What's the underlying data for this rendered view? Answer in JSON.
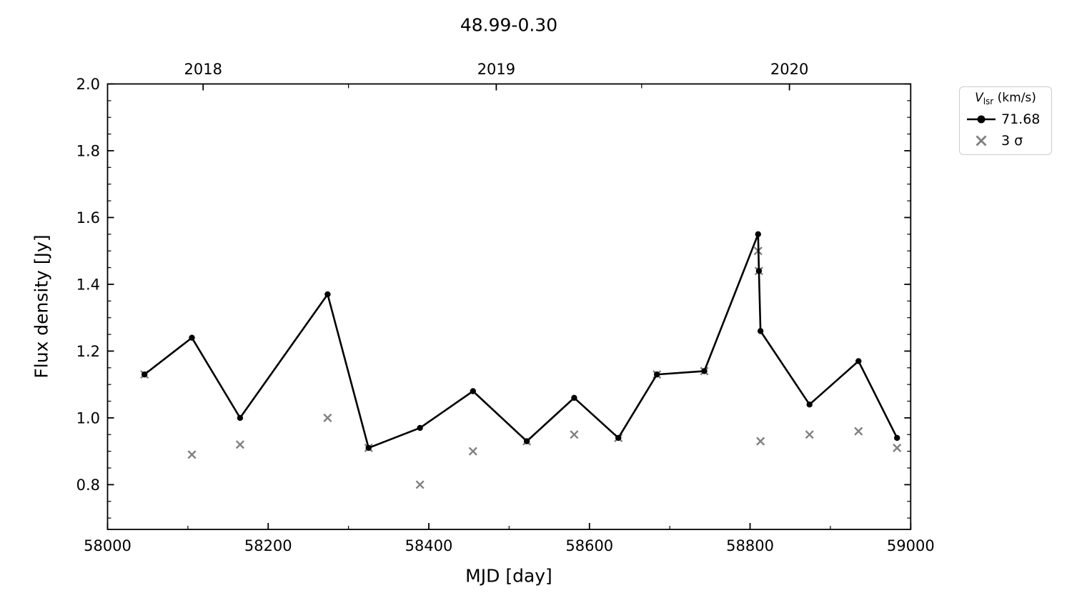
{
  "chart_data": {
    "type": "line",
    "title": "48.99-0.30",
    "xlabel": "MJD [day]",
    "ylabel": "Flux density [Jy]",
    "xlim": [
      58000,
      59000
    ],
    "ylim": [
      0.666,
      2.0
    ],
    "x_major_ticks": [
      58000,
      58200,
      58400,
      58600,
      58800,
      59000
    ],
    "x_minor_ticks": [
      58100,
      58300,
      58500,
      58700,
      58900
    ],
    "y_major_ticks": [
      0.8,
      1.0,
      1.2,
      1.4,
      1.6,
      1.8,
      2.0
    ],
    "y_minor_step": 0.05,
    "top_axis": {
      "years": [
        {
          "label": "2018",
          "mjd": 58119
        },
        {
          "label": "2019",
          "mjd": 58484
        },
        {
          "label": "2020",
          "mjd": 58849
        }
      ],
      "minor_ticks": [
        58300,
        58665
      ]
    },
    "grid": false,
    "legend_position": "outside-top-right",
    "series": [
      {
        "name": "71.68",
        "style": "line-with-dots",
        "color": "#000000",
        "marker": "circle",
        "x": [
          58046,
          58105,
          58165,
          58274,
          58325,
          58389,
          58455,
          58522,
          58581,
          58636,
          58684,
          58743,
          58810,
          58811,
          58813,
          58874,
          58935,
          58983
        ],
        "y": [
          1.13,
          1.24,
          1.0,
          1.37,
          0.91,
          0.97,
          1.08,
          0.93,
          1.06,
          0.94,
          1.13,
          1.14,
          1.55,
          1.44,
          1.26,
          1.04,
          1.17,
          0.94
        ]
      },
      {
        "name": "3 σ",
        "style": "scatter",
        "color": "#808080",
        "marker": "x",
        "x": [
          58046,
          58105,
          58165,
          58274,
          58325,
          58389,
          58455,
          58522,
          58581,
          58636,
          58684,
          58743,
          58810,
          58811,
          58813,
          58874,
          58935,
          58983
        ],
        "y": [
          1.13,
          0.89,
          0.92,
          1.0,
          0.91,
          0.8,
          0.9,
          0.93,
          0.95,
          0.94,
          1.13,
          1.14,
          1.5,
          1.44,
          0.93,
          0.95,
          0.96,
          0.91
        ]
      }
    ]
  },
  "legend": {
    "title_var": "V",
    "title_sub": "lsr",
    "title_units": " (km/s)",
    "entries": [
      {
        "label": "71.68",
        "marker": "line-dot-marker",
        "color": "#000000"
      },
      {
        "label": "3 σ",
        "marker": "x-marker",
        "color": "#808080"
      }
    ]
  },
  "colors": {
    "line": "#000000",
    "sigma_marker": "#808080",
    "legend_border": "#cccccc",
    "background": "#ffffff"
  }
}
